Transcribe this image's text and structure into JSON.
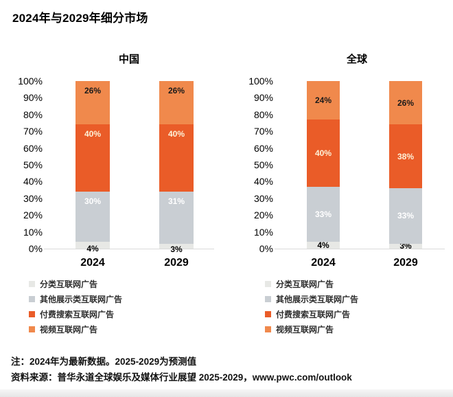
{
  "page": {
    "title": "2024年与2029年细分市场",
    "note": "注：2024年为最新数据。2025-2029为预测值",
    "source": "资料来源：普华永道全球娱乐及媒体行业展望 2025-2029，www.pwc.com/outlook"
  },
  "colors": {
    "series": [
      "#e7e8e5",
      "#c9ced3",
      "#ea5c28",
      "#f0894c"
    ],
    "series_label_text": [
      "#000000",
      "#ffffff",
      "#fdf2d9",
      "#1a1a1a"
    ],
    "axis_line": "#d9d9d9",
    "text": "#000000"
  },
  "chart_data": [
    {
      "type": "bar",
      "stacked": true,
      "title": "中国",
      "categories": [
        "2024",
        "2029"
      ],
      "series": [
        {
          "name": "分类互联网广告",
          "values": [
            4,
            3
          ]
        },
        {
          "name": "其他展示类互联网广告",
          "values": [
            30,
            31
          ]
        },
        {
          "name": "付费搜索互联网广告",
          "values": [
            40,
            40
          ]
        },
        {
          "name": "视频互联网广告",
          "values": [
            26,
            26
          ]
        }
      ],
      "ylim": [
        0,
        100
      ],
      "y_tick_labels": [
        "100%",
        "90%",
        "80%",
        "70%",
        "60%",
        "50%",
        "40%",
        "30%",
        "20%",
        "10%",
        "0%"
      ],
      "value_suffix": "%",
      "grid": false,
      "legend_position": "bottom"
    },
    {
      "type": "bar",
      "stacked": true,
      "title": "全球",
      "categories": [
        "2024",
        "2029"
      ],
      "series": [
        {
          "name": "分类互联网广告",
          "values": [
            4,
            3
          ]
        },
        {
          "name": "其他展示类互联网广告",
          "values": [
            33,
            33
          ]
        },
        {
          "name": "付费搜索互联网广告",
          "values": [
            40,
            38
          ]
        },
        {
          "name": "视频互联网广告",
          "values": [
            24,
            26
          ]
        }
      ],
      "ylim": [
        0,
        100
      ],
      "y_tick_labels": [
        "100%",
        "90%",
        "80%",
        "70%",
        "60%",
        "50%",
        "40%",
        "30%",
        "20%",
        "10%",
        "0%"
      ],
      "value_suffix": "%",
      "grid": false,
      "legend_position": "bottom"
    }
  ]
}
